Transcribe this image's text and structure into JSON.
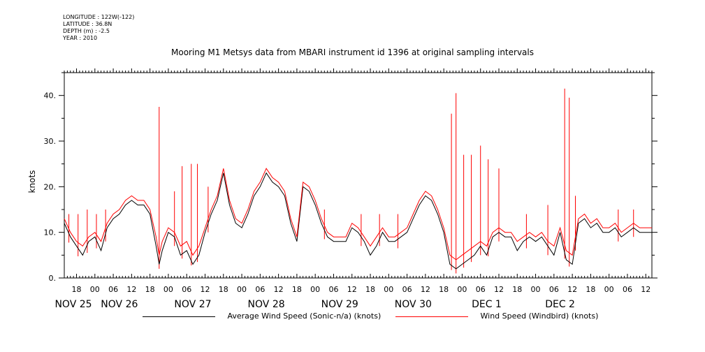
{
  "meta": {
    "longitude": "LONGITUDE : 122W(-122)",
    "latitude": "LATITUDE : 36.8N",
    "depth": "DEPTH (m) : -2.5",
    "year": "YEAR : 2010"
  },
  "chart_data": {
    "type": "line",
    "title": "Mooring M1 Metsys data from MBARI instrument id 1396 at original sampling intervals",
    "ylabel": "knots",
    "ylim": [
      0,
      45
    ],
    "y_ticks": [
      0,
      10,
      20,
      30,
      40
    ],
    "y_tick_labels": [
      "0.",
      "10.",
      "20.",
      "30.",
      "40."
    ],
    "xlim_hours": [
      14,
      206
    ],
    "x_hour_ticks": [
      {
        "h": 18,
        "label": "18"
      },
      {
        "h": 24,
        "label": "00"
      },
      {
        "h": 30,
        "label": "06"
      },
      {
        "h": 36,
        "label": "12"
      },
      {
        "h": 42,
        "label": "18"
      },
      {
        "h": 48,
        "label": "00"
      },
      {
        "h": 54,
        "label": "06"
      },
      {
        "h": 60,
        "label": "12"
      },
      {
        "h": 66,
        "label": "18"
      },
      {
        "h": 72,
        "label": "00"
      },
      {
        "h": 78,
        "label": "06"
      },
      {
        "h": 84,
        "label": "12"
      },
      {
        "h": 90,
        "label": "18"
      },
      {
        "h": 96,
        "label": "00"
      },
      {
        "h": 102,
        "label": "06"
      },
      {
        "h": 108,
        "label": "12"
      },
      {
        "h": 114,
        "label": "18"
      },
      {
        "h": 120,
        "label": "00"
      },
      {
        "h": 126,
        "label": "06"
      },
      {
        "h": 132,
        "label": "12"
      },
      {
        "h": 138,
        "label": "18"
      },
      {
        "h": 144,
        "label": "00"
      },
      {
        "h": 150,
        "label": "06"
      },
      {
        "h": 156,
        "label": "12"
      },
      {
        "h": 162,
        "label": "18"
      },
      {
        "h": 168,
        "label": "00"
      },
      {
        "h": 174,
        "label": "06"
      },
      {
        "h": 180,
        "label": "12"
      },
      {
        "h": 186,
        "label": "18"
      },
      {
        "h": 192,
        "label": "00"
      },
      {
        "h": 198,
        "label": "06"
      },
      {
        "h": 204,
        "label": "12"
      }
    ],
    "date_labels": [
      {
        "h": 8,
        "label": "NOV 25"
      },
      {
        "h": 32,
        "label": "NOV 26"
      },
      {
        "h": 56,
        "label": "NOV 27"
      },
      {
        "h": 80,
        "label": "NOV 28"
      },
      {
        "h": 104,
        "label": "NOV 29"
      },
      {
        "h": 128,
        "label": "NOV 30"
      },
      {
        "h": 152,
        "label": "DEC  1"
      },
      {
        "h": 176,
        "label": "DEC  2"
      }
    ],
    "series": [
      {
        "name": "Average Wind Speed (Sonic-n/a) (knots)",
        "color": "#000000",
        "x": [
          14,
          16,
          18,
          20,
          22,
          24,
          26,
          28,
          30,
          32,
          34,
          36,
          38,
          40,
          42,
          44,
          45,
          46,
          48,
          50,
          52,
          54,
          56,
          58,
          60,
          62,
          64,
          66,
          68,
          70,
          72,
          74,
          76,
          78,
          80,
          82,
          84,
          86,
          88,
          90,
          92,
          94,
          96,
          98,
          100,
          102,
          104,
          106,
          108,
          110,
          112,
          114,
          116,
          118,
          120,
          122,
          124,
          126,
          128,
          130,
          132,
          134,
          136,
          138,
          140,
          142,
          144,
          146,
          148,
          150,
          152,
          154,
          156,
          158,
          160,
          162,
          164,
          166,
          168,
          170,
          172,
          174,
          176,
          178,
          180,
          182,
          184,
          186,
          188,
          190,
          192,
          194,
          196,
          198,
          200,
          202,
          204,
          206
        ],
        "y": [
          12,
          9,
          7,
          5,
          8,
          9,
          6,
          11,
          13,
          14,
          16,
          17,
          16,
          16,
          14,
          7,
          3,
          6,
          10,
          9,
          5,
          6,
          3,
          5,
          10,
          14,
          17,
          23,
          16,
          12,
          11,
          14,
          18,
          20,
          23,
          21,
          20,
          18,
          12,
          8,
          20,
          19,
          16,
          12,
          9,
          8,
          8,
          8,
          11,
          10,
          8,
          5,
          7,
          10,
          8,
          8,
          9,
          10,
          13,
          16,
          18,
          17,
          14,
          10,
          3,
          2,
          3,
          4,
          5,
          7,
          5,
          9,
          10,
          9,
          9,
          6,
          8,
          9,
          8,
          9,
          7,
          5,
          10,
          4,
          3,
          12,
          13,
          11,
          12,
          10,
          10,
          11,
          9,
          10,
          11,
          10,
          10,
          10
        ]
      },
      {
        "name": "Wind Speed (Windbird) (knots)",
        "color": "#ff0000",
        "x": [
          14,
          16,
          18,
          20,
          22,
          24,
          26,
          28,
          30,
          32,
          34,
          36,
          38,
          40,
          42,
          44,
          45,
          46,
          48,
          50,
          52,
          54,
          56,
          58,
          60,
          62,
          64,
          66,
          68,
          70,
          72,
          74,
          76,
          78,
          80,
          82,
          84,
          86,
          88,
          90,
          92,
          94,
          96,
          98,
          100,
          102,
          104,
          106,
          108,
          110,
          112,
          114,
          116,
          118,
          120,
          122,
          124,
          126,
          128,
          130,
          132,
          134,
          136,
          138,
          140,
          142,
          144,
          146,
          148,
          150,
          152,
          154,
          156,
          158,
          160,
          162,
          164,
          166,
          168,
          170,
          172,
          174,
          176,
          178,
          180,
          182,
          184,
          186,
          188,
          190,
          192,
          194,
          196,
          198,
          200,
          202,
          204,
          206
        ],
        "y": [
          13,
          10,
          8,
          7,
          9,
          10,
          8,
          12,
          14,
          15,
          17,
          18,
          17,
          17,
          15,
          9,
          5,
          8,
          11,
          10,
          7,
          8,
          5,
          7,
          11,
          15,
          18,
          24,
          17,
          13,
          12,
          15,
          19,
          21,
          24,
          22,
          21,
          19,
          13,
          9,
          21,
          20,
          17,
          13,
          10,
          9,
          9,
          9,
          12,
          11,
          9,
          7,
          9,
          11,
          9,
          9,
          10,
          11,
          14,
          17,
          19,
          18,
          15,
          11,
          5,
          4,
          5,
          6,
          7,
          8,
          7,
          10,
          11,
          10,
          10,
          8,
          9,
          10,
          9,
          10,
          8,
          7,
          11,
          6,
          5,
          13,
          14,
          12,
          13,
          11,
          11,
          12,
          10,
          11,
          12,
          11,
          11,
          11
        ]
      }
    ],
    "red_spikes": [
      {
        "h": 15.5,
        "y": 14
      },
      {
        "h": 18.5,
        "y": 14
      },
      {
        "h": 21.5,
        "y": 15
      },
      {
        "h": 24.5,
        "y": 14
      },
      {
        "h": 27.5,
        "y": 15
      },
      {
        "h": 45,
        "y": 37.5
      },
      {
        "h": 50,
        "y": 19
      },
      {
        "h": 52.5,
        "y": 24.5
      },
      {
        "h": 55.5,
        "y": 25
      },
      {
        "h": 57.5,
        "y": 25
      },
      {
        "h": 61,
        "y": 20
      },
      {
        "h": 96,
        "y": 14
      },
      {
        "h": 99,
        "y": 15
      },
      {
        "h": 111,
        "y": 14
      },
      {
        "h": 117,
        "y": 14
      },
      {
        "h": 123,
        "y": 14
      },
      {
        "h": 140.5,
        "y": 36
      },
      {
        "h": 142,
        "y": 40.5
      },
      {
        "h": 144.5,
        "y": 27
      },
      {
        "h": 147,
        "y": 27
      },
      {
        "h": 150,
        "y": 29
      },
      {
        "h": 152.5,
        "y": 26
      },
      {
        "h": 156,
        "y": 24
      },
      {
        "h": 165,
        "y": 14
      },
      {
        "h": 172,
        "y": 16
      },
      {
        "h": 177.5,
        "y": 41.5
      },
      {
        "h": 179,
        "y": 39.5
      },
      {
        "h": 181,
        "y": 18
      },
      {
        "h": 195,
        "y": 15
      },
      {
        "h": 200,
        "y": 15
      }
    ]
  }
}
